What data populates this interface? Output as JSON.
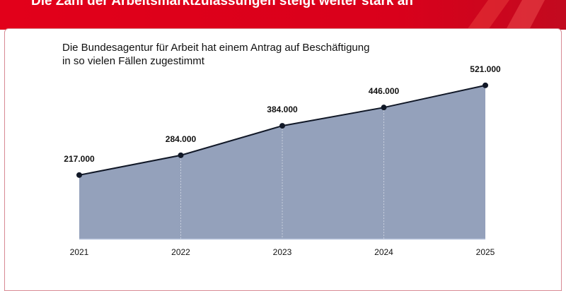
{
  "header": {
    "title": "Die Zahl der Arbeitsmarktzulassungen steigt weiter stark an"
  },
  "subtitle": {
    "line1": "Die Bundesagentur für Arbeit hat einem Antrag auf Beschäftigung",
    "line2": "in so vielen Fällen zugestimmt"
  },
  "colors": {
    "brand": "#e2001a",
    "area": "#94a1bb",
    "line": "#111827"
  },
  "chart_data": {
    "type": "area",
    "title": "Die Zahl der Arbeitsmarktzulassungen steigt weiter stark an",
    "subtitle": "Die Bundesagentur für Arbeit hat einem Antrag auf Beschäftigung in so vielen Fällen zugestimmt",
    "categories": [
      "2021",
      "2022",
      "2023",
      "2024",
      "2025"
    ],
    "values": [
      217000,
      284000,
      384000,
      446000,
      521000
    ],
    "labels": [
      "217.000",
      "284.000",
      "384.000",
      "446.000",
      "521.000"
    ],
    "xlabel": "",
    "ylabel": "",
    "ylim": [
      0,
      521000
    ],
    "grid": false,
    "legend": "none"
  }
}
